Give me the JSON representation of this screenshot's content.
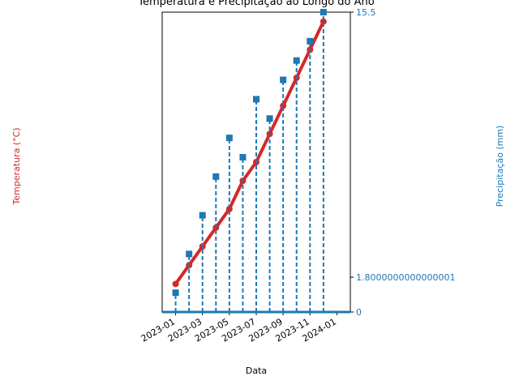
{
  "chart_data": {
    "type": "line",
    "title": "Temperatura e Precipitação ao Longo do Ano",
    "x_label": "Data",
    "y_label": "Temperatura (°C)",
    "y2_label": "Precipitação (mm)",
    "x": [
      "2023-01",
      "2023-02",
      "2023-03",
      "2023-04",
      "2023-05",
      "2023-06",
      "2023-07",
      "2023-08",
      "2023-09",
      "2023-10",
      "2023-11",
      "2023-12"
    ],
    "xticks": [
      "2023-01",
      "2023-03",
      "2023-05",
      "2023-07",
      "2023-09",
      "2023-11",
      "2024-01"
    ],
    "xlim": [
      "2022-12",
      "2024-02"
    ],
    "ylim": [
      0,
      32
    ],
    "y2lim": [
      0,
      15.5
    ],
    "y2ticks": [
      0,
      {
        "value": 1.8,
        "label": "1.8000000000000001"
      },
      15.5
    ],
    "series": [
      {
        "name": "Temperatura",
        "color": "#d62728",
        "values": [
          3,
          5,
          7,
          9,
          11,
          14,
          16,
          19,
          22,
          25,
          28,
          31
        ]
      },
      {
        "name": "Precipitação",
        "color": "#1f77b4",
        "axis": "y2",
        "values": [
          1,
          3,
          5,
          7,
          9,
          8,
          11,
          10,
          12,
          13,
          14,
          15.5
        ]
      }
    ]
  }
}
